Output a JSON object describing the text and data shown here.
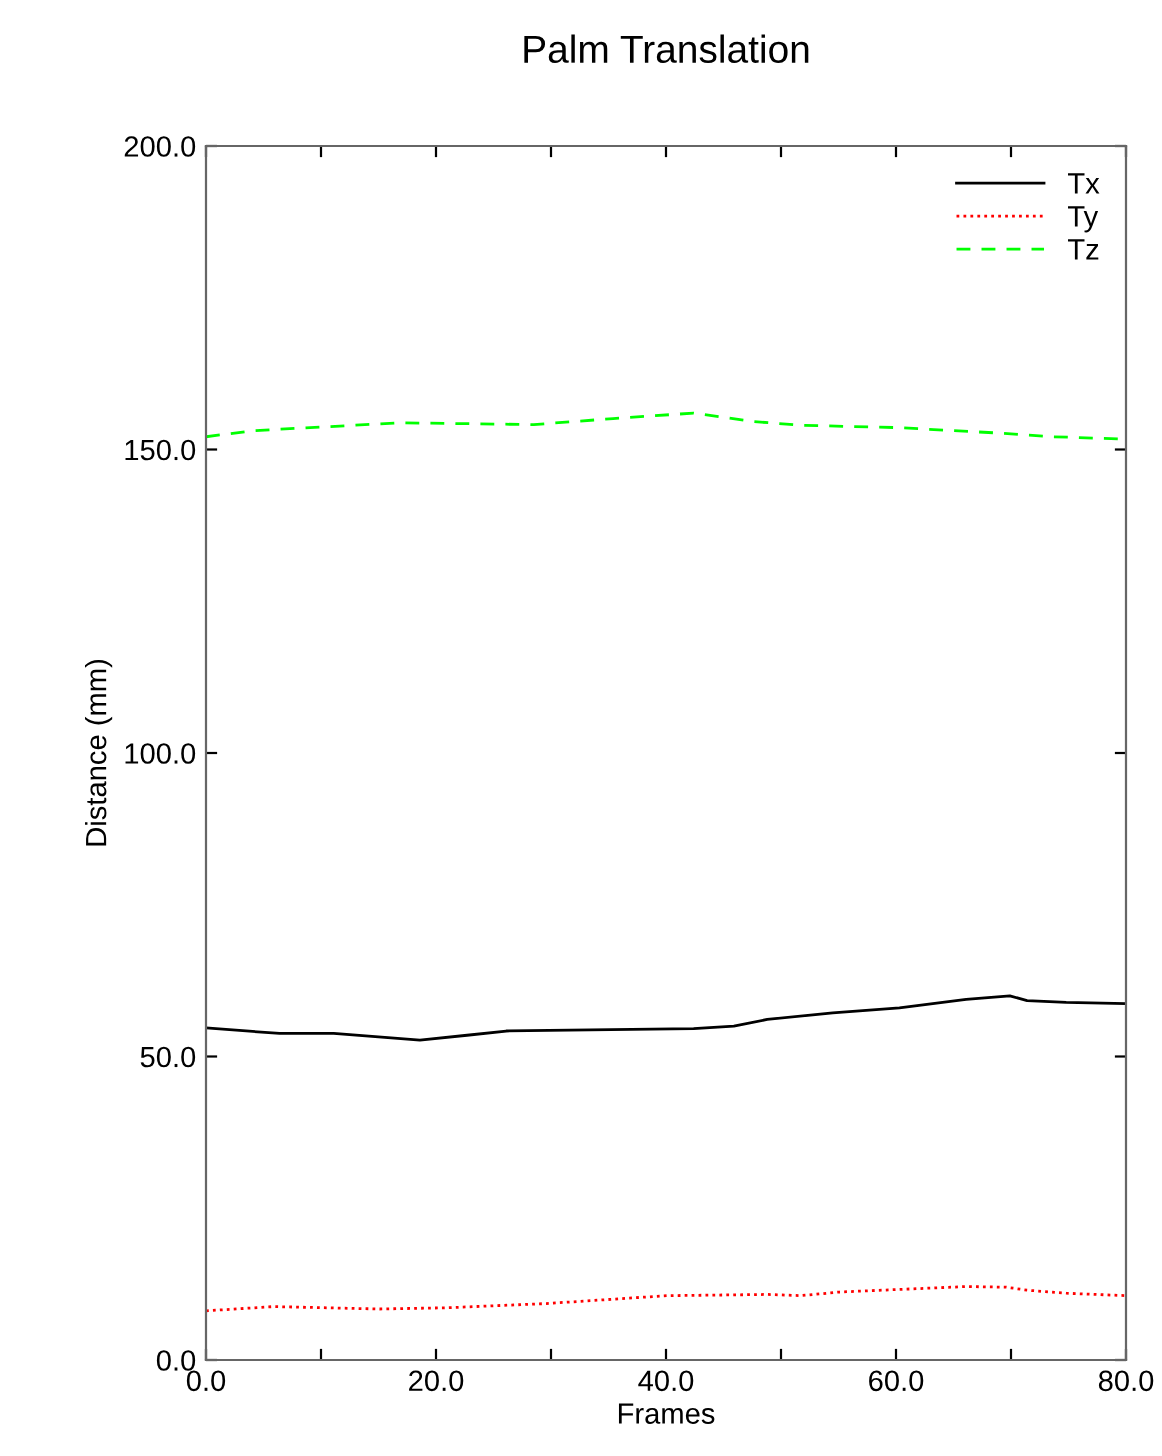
{
  "chart_data": {
    "type": "line",
    "title": "Palm Translation",
    "xlabel": "Frames",
    "ylabel": "Distance (mm)",
    "xlim": [
      0,
      80
    ],
    "ylim": [
      0,
      200
    ],
    "xticks": [
      {
        "value": 0,
        "label": "0.0"
      },
      {
        "value": 10,
        "label": null
      },
      {
        "value": 20,
        "label": "20.0"
      },
      {
        "value": 30,
        "label": null
      },
      {
        "value": 40,
        "label": "40.0"
      },
      {
        "value": 50,
        "label": null
      },
      {
        "value": 60,
        "label": "60.0"
      },
      {
        "value": 70,
        "label": null
      },
      {
        "value": 80,
        "label": "80.0"
      }
    ],
    "yticks": [
      {
        "value": 0,
        "label": "0.0"
      },
      {
        "value": 50,
        "label": "50.0"
      },
      {
        "value": 100,
        "label": "100.0"
      },
      {
        "value": 150,
        "label": "150.0"
      },
      {
        "value": 200,
        "label": "200.0"
      }
    ],
    "grid": false,
    "legend": "top right",
    "marker": "none",
    "series": [
      {
        "name": "Tx",
        "color": "#000000",
        "line_style": "solid",
        "x": [
          0,
          6.4,
          11.1,
          18.6,
          22.7,
          26.1,
          42.4,
          45.9,
          48.8,
          54.5,
          60.3,
          66.1,
          69.9,
          71.4,
          74.8,
          80
        ],
        "values": [
          54.7,
          53.8,
          53.8,
          52.7,
          53.5,
          54.2,
          54.6,
          55.0,
          56.1,
          57.2,
          58.0,
          59.4,
          60.0,
          59.2,
          58.9,
          58.7
        ]
      },
      {
        "name": "Ty",
        "color": "#ff0000",
        "line_style": "dotted",
        "x": [
          0,
          5.9,
          15.1,
          20.9,
          29.6,
          40.1,
          48.8,
          51.7,
          55.1,
          66.1,
          69.6,
          71.4,
          74.8,
          80
        ],
        "values": [
          8.1,
          8.8,
          8.4,
          8.6,
          9.3,
          10.6,
          10.8,
          10.6,
          11.2,
          12.1,
          12.0,
          11.5,
          11.0,
          10.6
        ]
      },
      {
        "name": "Tz",
        "color": "#00ff00",
        "line_style": "dashed",
        "x": [
          0,
          4.1,
          16.9,
          28.5,
          35.4,
          42.4,
          47.6,
          51.7,
          60.3,
          69.0,
          73.7,
          80
        ],
        "values": [
          152.1,
          153.1,
          154.4,
          154.1,
          155.1,
          156.0,
          154.6,
          154.0,
          153.6,
          152.7,
          152.1,
          151.7
        ]
      }
    ]
  }
}
